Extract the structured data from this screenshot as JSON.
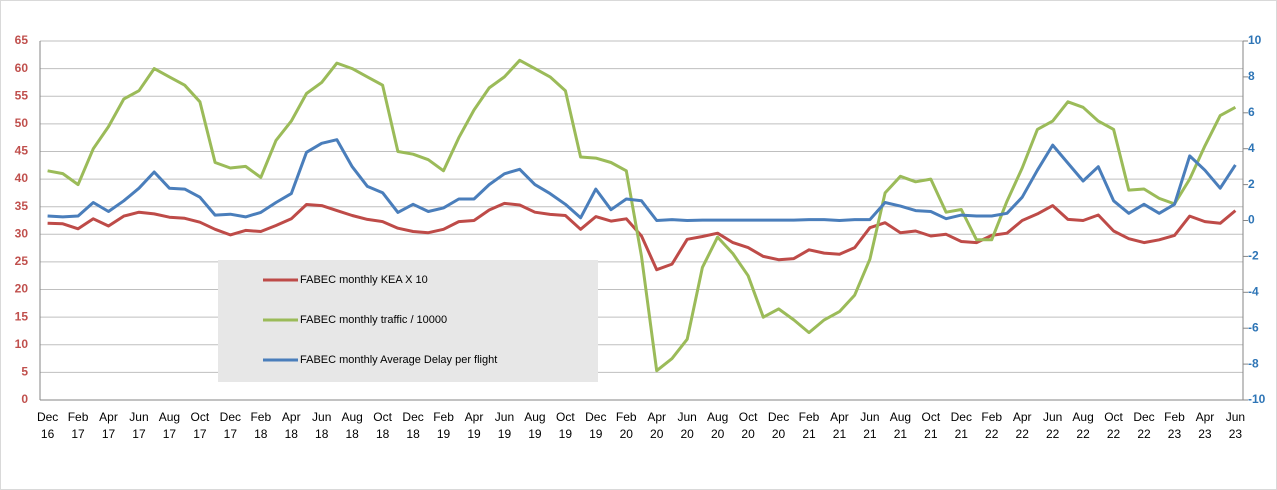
{
  "chart_data": {
    "type": "line",
    "categories": [
      "Dec 16",
      null,
      "Feb 17",
      null,
      "Apr 17",
      null,
      "Jun 17",
      null,
      "Aug 17",
      null,
      "Oct 17",
      null,
      "Dec 17",
      null,
      "Feb 18",
      null,
      "Apr 18",
      null,
      "Jun 18",
      null,
      "Aug 18",
      null,
      "Oct 18",
      null,
      "Dec 18",
      null,
      "Feb 19",
      null,
      "Apr 19",
      null,
      "Jun 19",
      null,
      "Aug 19",
      null,
      "Oct 19",
      null,
      "Dec 19",
      null,
      "Feb 20",
      null,
      "Apr 20",
      null,
      "Jun 20",
      null,
      "Aug 20",
      null,
      "Oct 20",
      null,
      "Dec 20",
      null,
      "Feb 21",
      null,
      "Apr 21",
      null,
      "Jun 21",
      null,
      "Aug 21",
      null,
      "Oct 21",
      null,
      "Dec 21",
      null,
      "Feb 22",
      null,
      "Apr 22",
      null,
      "Jun 22",
      null,
      "Aug 22",
      null,
      "Oct 22",
      null,
      "Dec 22",
      null,
      "Feb 23",
      null,
      "Apr 23",
      null,
      "Jun 23"
    ],
    "series": [
      {
        "name": "FABEC monthly KEA X 10",
        "color": "#be4b48",
        "values": [
          32.0,
          31.9,
          31.0,
          32.8,
          31.5,
          33.3,
          34.0,
          33.7,
          33.1,
          32.9,
          32.2,
          30.9,
          29.9,
          30.7,
          30.5,
          31.6,
          32.8,
          35.4,
          35.2,
          34.3,
          33.4,
          32.7,
          32.3,
          31.1,
          30.5,
          30.3,
          30.9,
          32.3,
          32.5,
          34.4,
          35.6,
          35.3,
          34.0,
          33.6,
          33.4,
          30.9,
          33.2,
          32.4,
          32.8,
          29.7,
          23.6,
          24.6,
          29.1,
          29.6,
          30.2,
          28.5,
          27.6,
          26.0,
          25.4,
          25.6,
          27.2,
          26.6,
          26.4,
          27.6,
          31.2,
          32.1,
          30.3,
          30.6,
          29.7,
          30.0,
          28.7,
          28.5,
          29.8,
          30.2,
          32.5,
          33.7,
          35.2,
          32.7,
          32.5,
          33.5,
          30.6,
          29.2,
          28.5,
          29.0,
          29.8,
          33.3,
          32.3,
          32.0,
          34.3
        ]
      },
      {
        "name": "FABEC monthly traffic / 10000",
        "color": "#9bbb59",
        "values": [
          41.5,
          41.0,
          39.0,
          45.5,
          49.5,
          54.5,
          56.0,
          60.0,
          58.5,
          57.0,
          54.0,
          43.0,
          42.0,
          42.3,
          40.3,
          47.0,
          50.5,
          55.5,
          57.5,
          61.0,
          60.0,
          58.5,
          57.0,
          45.0,
          44.5,
          43.5,
          41.5,
          47.5,
          52.5,
          56.5,
          58.5,
          61.5,
          60.0,
          58.5,
          56.0,
          44.0,
          43.8,
          43.0,
          41.5,
          26.0,
          5.3,
          7.5,
          11.0,
          24.0,
          29.5,
          26.5,
          22.5,
          15.0,
          16.5,
          14.5,
          12.2,
          14.5,
          16.0,
          19.0,
          25.5,
          37.5,
          40.5,
          39.5,
          40.0,
          34.0,
          34.5,
          29.0,
          29.0,
          36.0,
          42.0,
          49.0,
          50.5,
          54.0,
          53.0,
          50.5,
          49.0,
          38.0,
          38.2,
          36.5,
          35.5,
          40.0,
          46.0,
          51.5,
          53.0
        ]
      },
      {
        "name": "FABEC monthly Average Delay per flight",
        "color": "#4a7ebb",
        "axis": "y2",
        "values": [
          0.25,
          0.2,
          0.25,
          1.0,
          0.5,
          1.1,
          1.8,
          2.7,
          1.8,
          1.75,
          1.3,
          0.3,
          0.35,
          0.2,
          0.45,
          1.0,
          1.5,
          3.8,
          4.3,
          4.5,
          3.0,
          1.9,
          1.55,
          0.45,
          0.9,
          0.5,
          0.7,
          1.2,
          1.2,
          2.0,
          2.6,
          2.85,
          2.0,
          1.5,
          0.9,
          0.15,
          1.75,
          0.6,
          1.2,
          1.1,
          0.0,
          0.05,
          0.0,
          0.02,
          0.02,
          0.02,
          0.02,
          0.02,
          0.02,
          0.02,
          0.05,
          0.05,
          0.0,
          0.05,
          0.05,
          1.0,
          0.8,
          0.55,
          0.5,
          0.1,
          0.3,
          0.25,
          0.25,
          0.4,
          1.3,
          2.8,
          4.2,
          3.2,
          2.2,
          3.0,
          1.1,
          0.4,
          0.9,
          0.4,
          0.9,
          3.6,
          2.8,
          1.8,
          3.1
        ]
      }
    ],
    "ylim": [
      0,
      65
    ],
    "yticks": [
      0,
      5,
      10,
      15,
      20,
      25,
      30,
      35,
      40,
      45,
      50,
      55,
      60,
      65
    ],
    "y2lim": [
      -10,
      10
    ],
    "y2ticks": [
      -10,
      -8,
      -6,
      -4,
      -2,
      0,
      2,
      4,
      6,
      8,
      10
    ],
    "grid": true
  }
}
